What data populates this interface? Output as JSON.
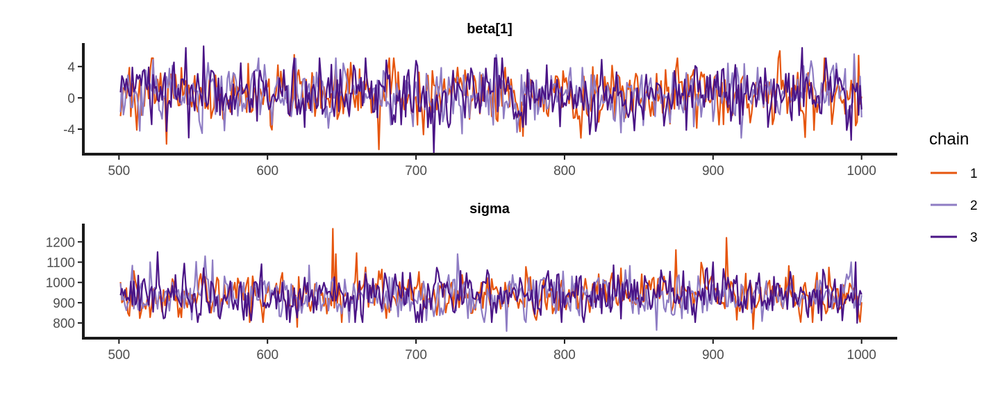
{
  "chart_data": [
    {
      "type": "line",
      "title": "beta[1]",
      "xlabel": "",
      "ylabel": "",
      "xlim": [
        476,
        1024
      ],
      "ylim": [
        -7.2,
        7.0
      ],
      "x_ticks": [
        500,
        600,
        700,
        800,
        900,
        1000
      ],
      "x_tick_labels": [
        "500",
        "600",
        "700",
        "800",
        "900",
        "1000"
      ],
      "y_ticks": [
        -4,
        0,
        4
      ],
      "y_tick_labels": [
        "-4",
        "0",
        "4"
      ],
      "grid": false,
      "x_range": [
        501,
        1000
      ],
      "series_style": {
        "mean": 0.5,
        "sd": 1.9,
        "seed": 11,
        "minmax": [
          -7.0,
          6.6
        ]
      },
      "series": [
        {
          "name": "1",
          "color": "#E6550D",
          "seed": 101,
          "extremes": [
            [
              532,
              -5.9
            ],
            [
              618,
              5.5
            ],
            [
              675,
              -6.6
            ],
            [
              945,
              6.0
            ],
            [
              998,
              5.4
            ]
          ]
        },
        {
          "name": "2",
          "color": "#8E7CC3",
          "seed": 202,
          "extremes": [
            [
              557,
              4.8
            ],
            [
              754,
              5.5
            ],
            [
              768,
              -4.4
            ],
            [
              990,
              -3.3
            ],
            [
              995,
              5.6
            ]
          ]
        },
        {
          "name": "3",
          "color": "#4A1486",
          "seed": 303,
          "extremes": [
            [
              545,
              6.4
            ],
            [
              557,
              6.6
            ],
            [
              547,
              -5.1
            ],
            [
              712,
              -7.0
            ],
            [
              960,
              6.4
            ],
            [
              993,
              -5.4
            ],
            [
              998,
              -2.2
            ]
          ]
        }
      ]
    },
    {
      "type": "line",
      "title": "sigma",
      "xlabel": "",
      "ylabel": "",
      "xlim": [
        476,
        1024
      ],
      "ylim": [
        725,
        1290
      ],
      "x_ticks": [
        500,
        600,
        700,
        800,
        900,
        1000
      ],
      "x_tick_labels": [
        "500",
        "600",
        "700",
        "800",
        "900",
        "1000"
      ],
      "y_ticks": [
        800,
        900,
        1000,
        1100,
        1200
      ],
      "y_tick_labels": [
        "800",
        "900",
        "1000",
        "1100",
        "1200"
      ],
      "grid": false,
      "x_range": [
        501,
        1000
      ],
      "series_style": {
        "mean": 935,
        "sd": 55,
        "seed": 22,
        "minmax": [
          760,
          1265
        ]
      },
      "series": [
        {
          "name": "1",
          "color": "#E6550D",
          "seed": 404,
          "extremes": [
            [
              644,
              1265
            ],
            [
              646,
              1140
            ],
            [
              909,
              1220
            ],
            [
              875,
              1160
            ],
            [
              927,
              770
            ],
            [
              620,
              780
            ]
          ]
        },
        {
          "name": "2",
          "color": "#8E7CC3",
          "seed": 505,
          "extremes": [
            [
              521,
              1100
            ],
            [
              563,
              1110
            ],
            [
              728,
              1140
            ],
            [
              761,
              760
            ],
            [
              862,
              765
            ],
            [
              993,
              1100
            ],
            [
              999,
              890
            ]
          ]
        },
        {
          "name": "3",
          "color": "#4A1486",
          "seed": 606,
          "extremes": [
            [
              526,
              1150
            ],
            [
              596,
              1090
            ],
            [
              900,
              1100
            ],
            [
              996,
              1100
            ],
            [
              997,
              800
            ],
            [
              1000,
              940
            ]
          ]
        }
      ]
    }
  ],
  "legend": {
    "title": "chain",
    "position": "right",
    "items": [
      {
        "label": "1",
        "color": "#E6550D"
      },
      {
        "label": "2",
        "color": "#8E7CC3"
      },
      {
        "label": "3",
        "color": "#4A1486"
      }
    ]
  }
}
